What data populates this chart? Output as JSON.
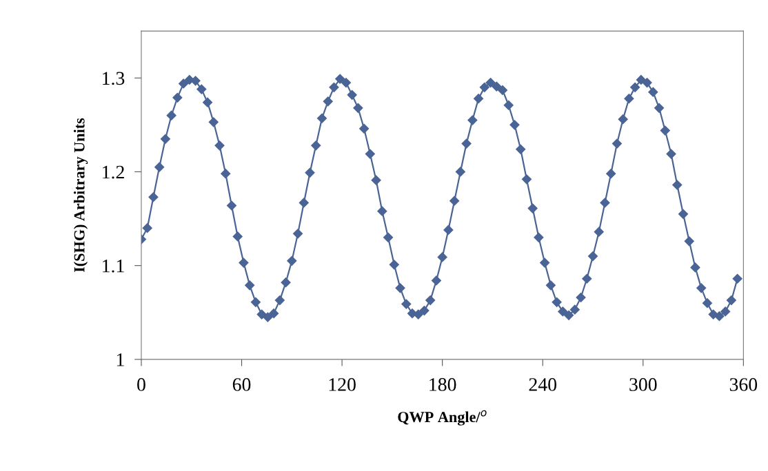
{
  "chart_data": {
    "type": "line",
    "xlabel": "QWP Angle/$^{o}$",
    "ylabel": "I(SHG) Arbitrary Units",
    "x": [
      0,
      3.6,
      7.2,
      10.8,
      14.4,
      18,
      21.6,
      25.2,
      28.8,
      32.4,
      36,
      39.6,
      43.2,
      46.8,
      50.4,
      54,
      57.6,
      61.2,
      64.8,
      68.4,
      72,
      75.6,
      79.2,
      82.8,
      86.4,
      90,
      93.6,
      97.2,
      100.8,
      104.4,
      108,
      111.6,
      115.2,
      118.8,
      122.4,
      126,
      129.6,
      133.2,
      136.8,
      140.4,
      144,
      147.6,
      151.2,
      154.8,
      158.4,
      162,
      165.6,
      169.2,
      172.8,
      176.4,
      180,
      183.6,
      187.2,
      190.8,
      194.4,
      198,
      201.6,
      205.2,
      208.8,
      212.4,
      216,
      219.6,
      223.2,
      226.8,
      230.4,
      234,
      237.6,
      241.2,
      244.8,
      248.4,
      252,
      255.6,
      259.2,
      262.8,
      266.4,
      270,
      273.6,
      277.2,
      280.8,
      284.4,
      288,
      291.6,
      295.2,
      298.8,
      302.4,
      306,
      309.6,
      313.2,
      316.8,
      320.4,
      324,
      327.6,
      331.2,
      334.8,
      338.4,
      342,
      345.6,
      349.2,
      352.8,
      356.4
    ],
    "series": [
      {
        "color": "#4a6496",
        "values": [
          1.128,
          1.14,
          1.173,
          1.205,
          1.235,
          1.26,
          1.279,
          1.294,
          1.298,
          1.297,
          1.288,
          1.274,
          1.253,
          1.228,
          1.198,
          1.164,
          1.131,
          1.103,
          1.079,
          1.061,
          1.048,
          1.045,
          1.049,
          1.063,
          1.082,
          1.105,
          1.134,
          1.167,
          1.199,
          1.228,
          1.257,
          1.275,
          1.29,
          1.299,
          1.295,
          1.282,
          1.268,
          1.246,
          1.219,
          1.191,
          1.158,
          1.13,
          1.101,
          1.076,
          1.059,
          1.049,
          1.048,
          1.052,
          1.063,
          1.084,
          1.109,
          1.138,
          1.169,
          1.2,
          1.23,
          1.255,
          1.278,
          1.29,
          1.295,
          1.291,
          1.287,
          1.271,
          1.25,
          1.224,
          1.192,
          1.161,
          1.13,
          1.103,
          1.079,
          1.061,
          1.051,
          1.047,
          1.053,
          1.066,
          1.086,
          1.11,
          1.136,
          1.167,
          1.198,
          1.23,
          1.256,
          1.278,
          1.29,
          1.298,
          1.295,
          1.285,
          1.268,
          1.244,
          1.219,
          1.186,
          1.155,
          1.126,
          1.098,
          1.076,
          1.06,
          1.048,
          1.046,
          1.051,
          1.063,
          1.086
        ]
      }
    ],
    "xlim": [
      0,
      360
    ],
    "xticks": [
      0,
      60,
      120,
      180,
      240,
      300,
      360
    ],
    "ylim": [
      1,
      1.35
    ],
    "yticks": [
      1,
      1.1,
      1.2,
      1.3
    ],
    "marker": "diamond",
    "line_style": "solid"
  }
}
